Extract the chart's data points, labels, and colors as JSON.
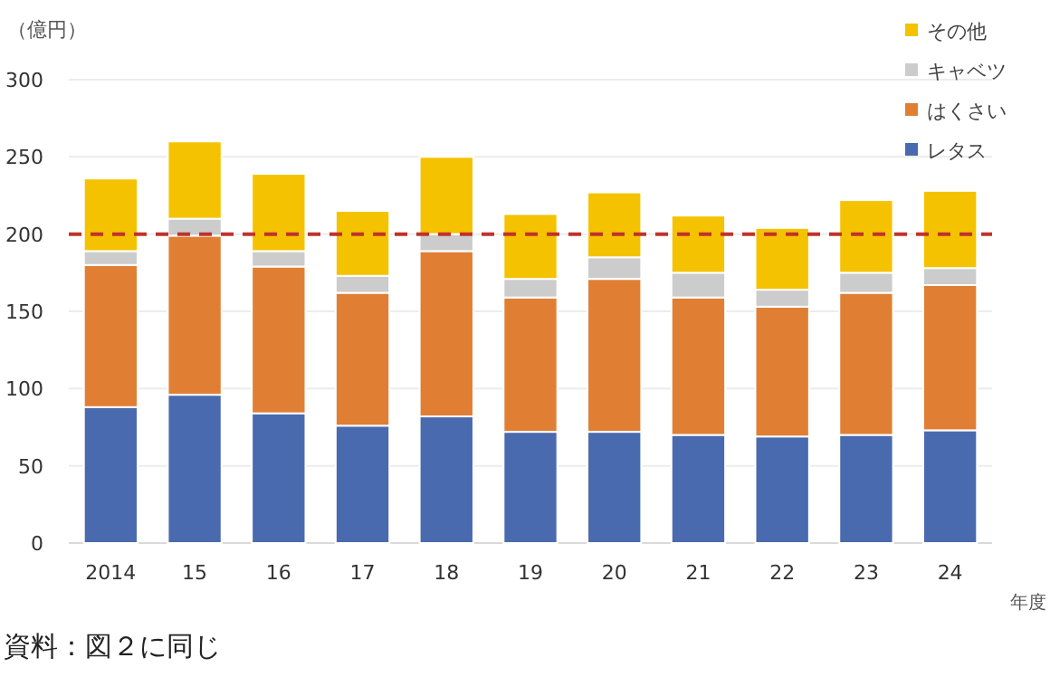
{
  "chart_data": {
    "type": "bar",
    "stacked": true,
    "ylabel": "（億円）",
    "xlabel": "年度",
    "categories": [
      "2014",
      "15",
      "16",
      "17",
      "18",
      "19",
      "20",
      "21",
      "22",
      "23",
      "24"
    ],
    "series": [
      {
        "name": "レタス",
        "color": "#4a6aaf",
        "values": [
          88,
          96,
          84,
          76,
          82,
          72,
          72,
          70,
          69,
          70,
          73
        ]
      },
      {
        "name": "はくさい",
        "color": "#e07f34",
        "values": [
          92,
          103,
          95,
          86,
          107,
          87,
          99,
          89,
          84,
          92,
          94
        ]
      },
      {
        "name": "キャベツ",
        "color": "#cccccc",
        "values": [
          9,
          11,
          10,
          11,
          11,
          12,
          14,
          16,
          11,
          13,
          11
        ]
      },
      {
        "name": "その他",
        "color": "#f5c200",
        "values": [
          47,
          50,
          50,
          42,
          50,
          42,
          42,
          37,
          40,
          47,
          50
        ]
      }
    ],
    "ylim": [
      0,
      300
    ],
    "yticks": [
      0,
      50,
      100,
      150,
      200,
      250,
      300
    ],
    "grid": "y",
    "legend": "top right",
    "ref_lines": [
      {
        "axis": "y",
        "value": 200,
        "color": "#c0322b",
        "line_style": "dashed"
      }
    ],
    "annotations": [
      "資料：図２に同じ"
    ]
  }
}
